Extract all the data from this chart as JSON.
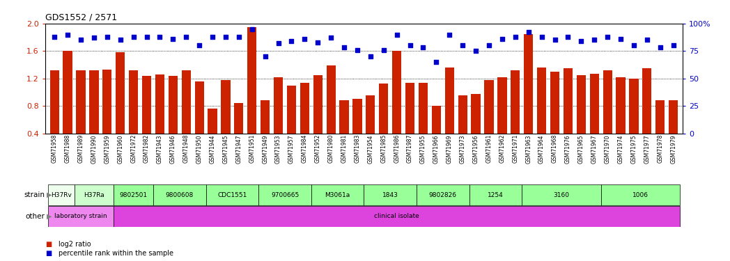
{
  "title": "GDS1552 / 2571",
  "samples": [
    "GSM71958",
    "GSM71988",
    "GSM71989",
    "GSM71990",
    "GSM71959",
    "GSM71960",
    "GSM71972",
    "GSM71982",
    "GSM71943",
    "GSM71946",
    "GSM71948",
    "GSM71950",
    "GSM71944",
    "GSM71945",
    "GSM71947",
    "GSM71951",
    "GSM71949",
    "GSM71953",
    "GSM71957",
    "GSM71984",
    "GSM71952",
    "GSM71980",
    "GSM71981",
    "GSM71983",
    "GSM71954",
    "GSM71985",
    "GSM71986",
    "GSM71987",
    "GSM71955",
    "GSM71966",
    "GSM71969",
    "GSM71973",
    "GSM71956",
    "GSM71961",
    "GSM71962",
    "GSM71971",
    "GSM71963",
    "GSM71964",
    "GSM71968",
    "GSM71976",
    "GSM71965",
    "GSM71967",
    "GSM71970",
    "GSM71974",
    "GSM71975",
    "GSM71977",
    "GSM71978",
    "GSM71979"
  ],
  "bar_values": [
    1.32,
    1.6,
    1.32,
    1.32,
    1.33,
    1.58,
    1.32,
    1.24,
    1.26,
    1.24,
    1.32,
    1.16,
    0.76,
    1.18,
    0.84,
    1.95,
    0.88,
    1.22,
    1.1,
    1.14,
    1.25,
    1.39,
    0.88,
    0.9,
    0.95,
    1.13,
    1.6,
    1.14,
    1.14,
    0.8,
    1.36,
    0.95,
    0.97,
    1.18,
    1.22,
    1.32,
    1.85,
    1.36,
    1.3,
    1.35,
    1.25,
    1.27,
    1.32,
    1.22,
    1.2,
    1.35,
    0.88,
    0.88
  ],
  "percentile_values": [
    88,
    90,
    85,
    87,
    88,
    85,
    88,
    88,
    88,
    86,
    88,
    80,
    88,
    88,
    88,
    95,
    70,
    82,
    84,
    86,
    83,
    87,
    78,
    76,
    70,
    76,
    90,
    80,
    78,
    65,
    90,
    80,
    75,
    80,
    86,
    88,
    92,
    88,
    85,
    88,
    84,
    85,
    88,
    86,
    80,
    85,
    78,
    80
  ],
  "strain_groups": [
    {
      "label": "H37Rv",
      "start": 0,
      "end": 2,
      "color": "#eeffee"
    },
    {
      "label": "H37Ra",
      "start": 2,
      "end": 5,
      "color": "#ccffcc"
    },
    {
      "label": "9802501",
      "start": 5,
      "end": 8,
      "color": "#99ff99"
    },
    {
      "label": "9800608",
      "start": 8,
      "end": 12,
      "color": "#99ff99"
    },
    {
      "label": "CDC1551",
      "start": 12,
      "end": 16,
      "color": "#99ff99"
    },
    {
      "label": "9700665",
      "start": 16,
      "end": 20,
      "color": "#99ff99"
    },
    {
      "label": "M3061a",
      "start": 20,
      "end": 24,
      "color": "#99ff99"
    },
    {
      "label": "1843",
      "start": 24,
      "end": 28,
      "color": "#99ff99"
    },
    {
      "label": "9802826",
      "start": 28,
      "end": 32,
      "color": "#99ff99"
    },
    {
      "label": "1254",
      "start": 32,
      "end": 36,
      "color": "#99ff99"
    },
    {
      "label": "3160",
      "start": 36,
      "end": 42,
      "color": "#99ff99"
    },
    {
      "label": "1006",
      "start": 42,
      "end": 48,
      "color": "#99ff99"
    }
  ],
  "other_groups": [
    {
      "label": "laboratory strain",
      "start": 0,
      "end": 5,
      "color": "#ee88ee"
    },
    {
      "label": "clinical isolate",
      "start": 5,
      "end": 48,
      "color": "#dd44dd"
    }
  ],
  "bar_color": "#cc2200",
  "dot_color": "#0000cc",
  "ylim_left": [
    0.4,
    2.0
  ],
  "ylim_right": [
    0,
    100
  ],
  "yticks_left": [
    0.4,
    0.8,
    1.2,
    1.6,
    2.0
  ],
  "yticks_right": [
    0,
    25,
    50,
    75,
    100
  ],
  "ytick_labels_right": [
    "0",
    "25",
    "50",
    "75",
    "100%"
  ],
  "hline_values": [
    0.8,
    1.2,
    1.6
  ],
  "bar_width": 0.7,
  "background_color": "#ffffff"
}
